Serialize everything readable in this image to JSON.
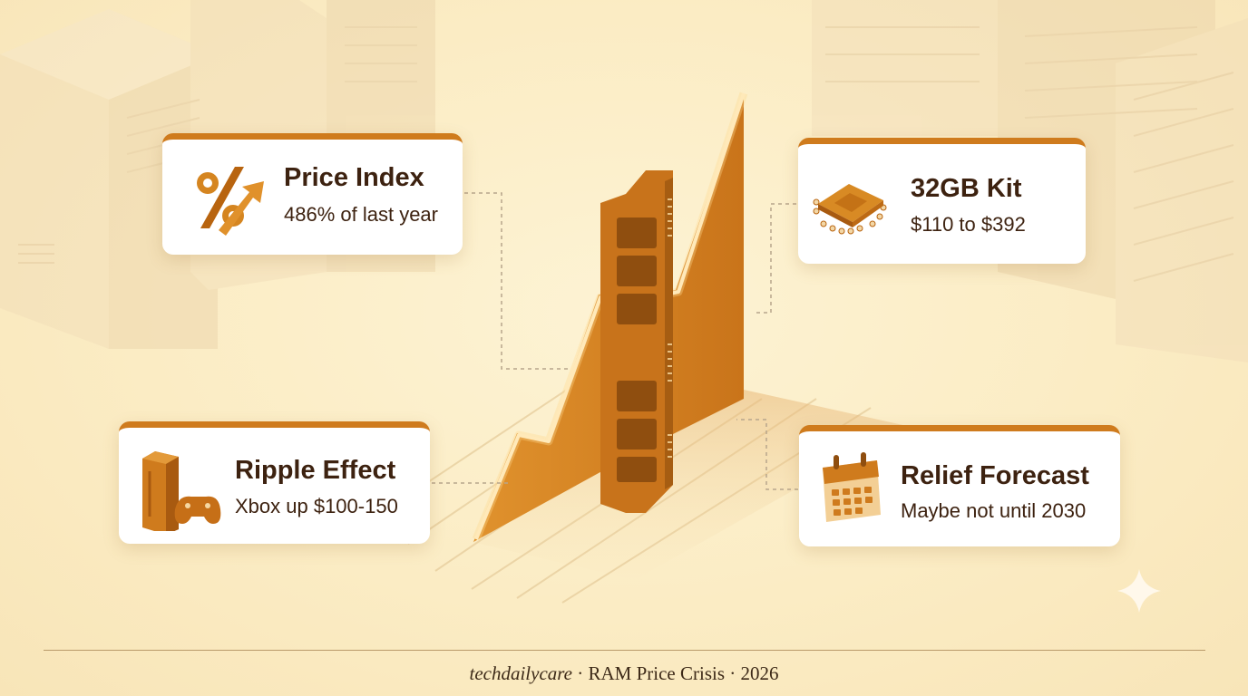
{
  "cards": {
    "price_index": {
      "title": "Price Index",
      "subtitle": "486% of last year",
      "icon": "percent-arrow-icon"
    },
    "kit_32gb": {
      "title": "32GB Kit",
      "subtitle": "$110 to $392",
      "icon": "chip-icon"
    },
    "ripple_effect": {
      "title": "Ripple Effect",
      "subtitle": "Xbox up $100-150",
      "icon": "console-controller-icon"
    },
    "relief_forecast": {
      "title": "Relief Forecast",
      "subtitle": "Maybe not until 2030",
      "icon": "calendar-icon"
    }
  },
  "footer": {
    "brand": "techdailycare",
    "separator": " · ",
    "topic": "RAM Price Crisis",
    "year": "2026"
  },
  "colors": {
    "accent": "#cf7b1d",
    "accent_dark": "#a85a10",
    "text": "#3d2210",
    "background": "#fbecc4"
  },
  "illustration": {
    "ram-stick-icon": "RAM module",
    "chart": "rising price graph"
  }
}
